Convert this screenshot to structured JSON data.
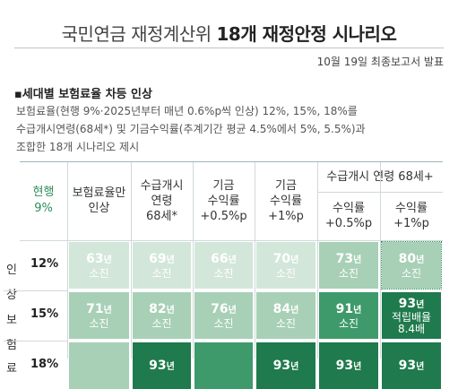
{
  "title": {
    "normal": "국민연금 재정계산위 ",
    "bold": "18개 재정안정 시나리오"
  },
  "date": "10월 19일 최종보고서 발표",
  "section_title": "▪세대별 보험료율 차등 인상",
  "description": [
    "보험료율(현행 9%·2025년부터 매년 0.6%p씩 인상) 12%, 15%, 18%를",
    "수급개시연령(68세*) 및 기금수익률(추계기간 평균 4.5%에서 5%, 5.5%)과",
    "조합한 18개 시나리오 제시"
  ],
  "headers": {
    "current": [
      "현행",
      "9%"
    ],
    "col1": [
      "보험료율만",
      "인상"
    ],
    "col2": [
      "수급개시",
      "연령",
      "68세*"
    ],
    "col3": [
      "기금",
      "수익률",
      "+0.5%p"
    ],
    "col4": [
      "기금",
      "수익률",
      "+1%p"
    ],
    "group": "수급개시 연령 68세+",
    "col5": [
      "수익률",
      "+0.5%p"
    ],
    "col6": [
      "수익률",
      "+1%p"
    ]
  },
  "side_label": [
    "인",
    "상",
    "보",
    "험",
    "료"
  ],
  "rows": [
    {
      "label": "12%",
      "cells": [
        {
          "year": "63",
          "unit": "년",
          "status": "소진",
          "color": "#d3e6da"
        },
        {
          "year": "69",
          "unit": "년",
          "status": "소진",
          "color": "#d3e6da"
        },
        {
          "year": "66",
          "unit": "년",
          "status": "소진",
          "color": "#d3e6da"
        },
        {
          "year": "70",
          "unit": "년",
          "status": "소진",
          "color": "#d3e6da"
        },
        {
          "year": "73",
          "unit": "년",
          "status": "소진",
          "color": "#a8d0b6"
        },
        {
          "year": "80",
          "unit": "년",
          "status": "소진",
          "color": "#a8d0b6"
        }
      ]
    },
    {
      "label": "15%",
      "cells": [
        {
          "year": "71",
          "unit": "년",
          "status": "소진",
          "color": "#a8d0b6"
        },
        {
          "year": "82",
          "unit": "년",
          "status": "소진",
          "color": "#a8d0b6"
        },
        {
          "year": "76",
          "unit": "년",
          "status": "소진",
          "color": "#a8d0b6"
        },
        {
          "year": "84",
          "unit": "년",
          "status": "소진",
          "color": "#a8d0b6"
        },
        {
          "year": "91",
          "unit": "년",
          "status": "소진",
          "color": "#3f9a6b"
        },
        {
          "year": "93",
          "unit": "년",
          "status": "적립배율 8.4배",
          "color": "#1f7a4d"
        }
      ]
    },
    {
      "label": "18%",
      "cells": [
        {
          "year": "",
          "unit": "",
          "status": "",
          "color": "#a8d0b6"
        },
        {
          "year": "93",
          "unit": "년",
          "status": "",
          "color": "#1f7a4d"
        },
        {
          "year": "",
          "unit": "",
          "status": "",
          "color": "#3f9a6b"
        },
        {
          "year": "93",
          "unit": "년",
          "status": "",
          "color": "#1f7a4d"
        },
        {
          "year": "93",
          "unit": "년",
          "status": "",
          "color": "#1f7a4d"
        },
        {
          "year": "93",
          "unit": "년",
          "status": "",
          "color": "#1f7a4d"
        }
      ]
    }
  ]
}
